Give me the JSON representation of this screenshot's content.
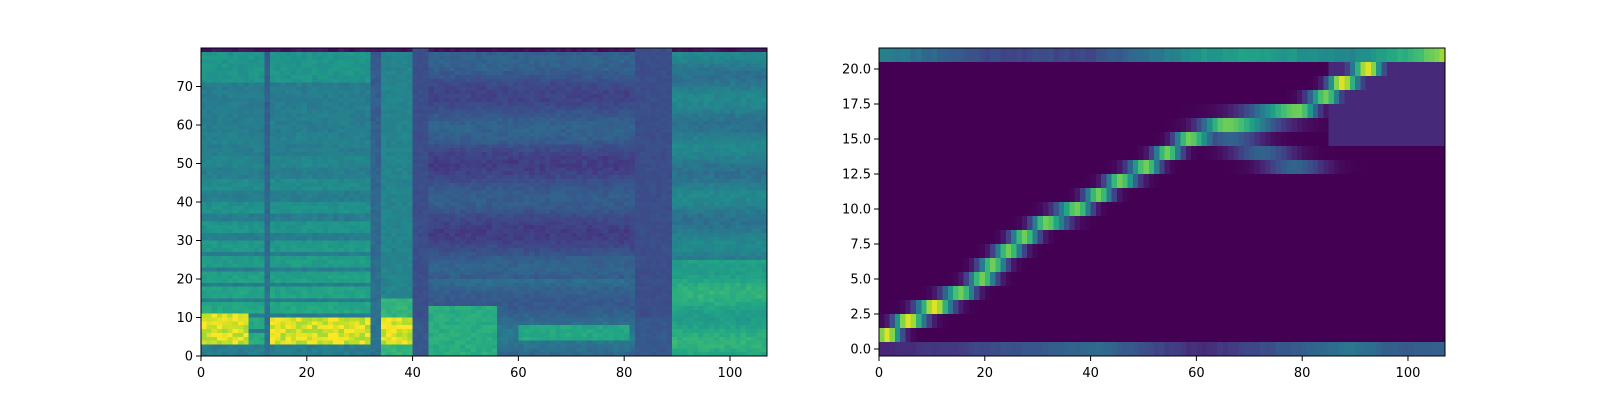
{
  "chart_data": [
    {
      "type": "heatmap",
      "title": "",
      "xlabel": "",
      "ylabel": "",
      "xlim": [
        0,
        107
      ],
      "ylim": [
        0,
        80
      ],
      "xticks": [
        0,
        20,
        40,
        60,
        80,
        100
      ],
      "yticks": [
        0,
        10,
        20,
        30,
        40,
        50,
        60,
        70
      ],
      "colormap": "viridis",
      "grid": false,
      "legend": "none",
      "content": "mel spectrogram",
      "events": {
        "silent_columns": [
          [
            40,
            42
          ],
          [
            82,
            88
          ]
        ],
        "voiced_segments": [
          [
            0,
            11
          ],
          [
            13,
            31
          ],
          [
            34,
            39
          ],
          [
            43,
            82
          ],
          [
            89,
            107
          ]
        ],
        "harmonic_band_rows": [
          4,
          8,
          12,
          16,
          20,
          24,
          28,
          33,
          38,
          44,
          50,
          56
        ],
        "strong_low_band": [
          [
            13,
            31,
            3,
            9
          ],
          [
            0,
            8,
            3,
            10
          ],
          [
            34,
            39,
            3,
            9
          ]
        ]
      }
    },
    {
      "type": "heatmap",
      "title": "",
      "xlabel": "",
      "ylabel": "",
      "xlim": [
        0,
        107
      ],
      "ylim": [
        -0.5,
        21.5
      ],
      "xticks": [
        0,
        20,
        40,
        60,
        80,
        100
      ],
      "yticks": [
        0.0,
        2.5,
        5.0,
        7.5,
        10.0,
        12.5,
        15.0,
        17.5,
        20.0
      ],
      "ytick_labels": [
        "0.0",
        "2.5",
        "5.0",
        "7.5",
        "10.0",
        "12.5",
        "15.0",
        "17.5",
        "20.0"
      ],
      "colormap": "viridis",
      "grid": false,
      "legend": "none",
      "content": "attention alignment",
      "alignment_path": [
        {
          "decoder_step": 1,
          "encoder_index": 1
        },
        {
          "decoder_step": 5,
          "encoder_index": 2
        },
        {
          "decoder_step": 10,
          "encoder_index": 3
        },
        {
          "decoder_step": 15,
          "encoder_index": 4
        },
        {
          "decoder_step": 19,
          "encoder_index": 5
        },
        {
          "decoder_step": 21,
          "encoder_index": 6
        },
        {
          "decoder_step": 24,
          "encoder_index": 7
        },
        {
          "decoder_step": 27,
          "encoder_index": 8
        },
        {
          "decoder_step": 31,
          "encoder_index": 9
        },
        {
          "decoder_step": 37,
          "encoder_index": 10
        },
        {
          "decoder_step": 41,
          "encoder_index": 11
        },
        {
          "decoder_step": 45,
          "encoder_index": 12
        },
        {
          "decoder_step": 50,
          "encoder_index": 13
        },
        {
          "decoder_step": 54,
          "encoder_index": 14
        },
        {
          "decoder_step": 58,
          "encoder_index": 15
        },
        {
          "decoder_step": 65,
          "encoder_index": 16
        },
        {
          "decoder_step": 79,
          "encoder_index": 17
        },
        {
          "decoder_step": 84,
          "encoder_index": 18
        },
        {
          "decoder_step": 87,
          "encoder_index": 19
        },
        {
          "decoder_step": 92,
          "encoder_index": 20
        },
        {
          "decoder_step": 95,
          "encoder_index": 21
        }
      ],
      "secondary_path": [
        {
          "decoder_step": 66,
          "encoder_index": 15
        },
        {
          "decoder_step": 72,
          "encoder_index": 14
        },
        {
          "decoder_step": 78,
          "encoder_index": 13
        }
      ],
      "top_row_intensity": [
        {
          "x": 0,
          "v": 0.45
        },
        {
          "x": 20,
          "v": 0.22
        },
        {
          "x": 40,
          "v": 0.22
        },
        {
          "x": 60,
          "v": 0.52
        },
        {
          "x": 70,
          "v": 0.58
        },
        {
          "x": 88,
          "v": 0.45
        },
        {
          "x": 100,
          "v": 0.65
        },
        {
          "x": 106,
          "v": 0.85
        }
      ],
      "bottom_row_intensity": [
        {
          "x": 0,
          "v": 0.1
        },
        {
          "x": 41,
          "v": 0.35
        },
        {
          "x": 60,
          "v": 0.12
        },
        {
          "x": 89,
          "v": 0.4
        },
        {
          "x": 96,
          "v": 0.3
        },
        {
          "x": 106,
          "v": 0.3
        }
      ]
    }
  ]
}
